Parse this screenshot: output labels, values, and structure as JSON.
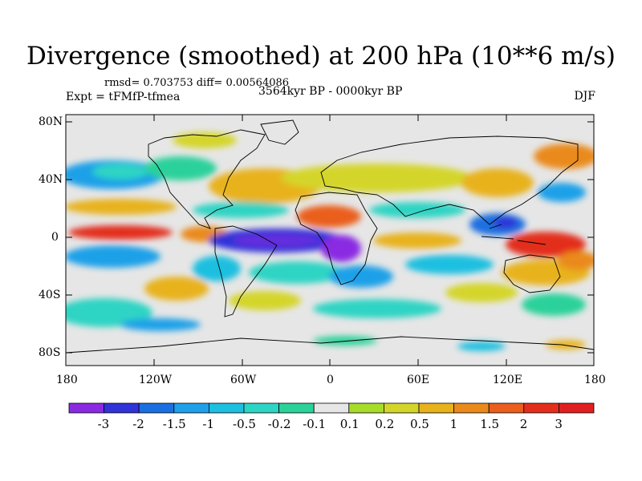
{
  "title": "Divergence (smoothed) at 200 hPa (10**6 m/s)",
  "stats": "rmsd= 0.703753 diff= 0.00564086",
  "experiment": "Expt = tFMfP-tfmea",
  "period": "3564kyr BP - 0000kyr BP",
  "season": "DJF",
  "y_ticks": [
    "80N",
    "40N",
    "0",
    "40S",
    "80S"
  ],
  "x_ticks": [
    "180",
    "120W",
    "60W",
    "0",
    "60E",
    "120E",
    "180"
  ],
  "colorbar": {
    "labels": [
      "-3",
      "-2",
      "-1.5",
      "-1",
      "-0.5",
      "-0.2",
      "-0.1",
      "0.1",
      "0.2",
      "0.5",
      "1",
      "1.5",
      "2",
      "3"
    ],
    "colors": [
      "#8a2be2",
      "#2f33d8",
      "#1c6fe0",
      "#1fa0e8",
      "#1ebfe0",
      "#2ed4c4",
      "#2cd19a",
      "#e6e6e6",
      "#a8dc2a",
      "#d4d52a",
      "#e8b21c",
      "#ea8a1c",
      "#ea5e1e",
      "#e32f1c",
      "#e02020"
    ]
  }
}
